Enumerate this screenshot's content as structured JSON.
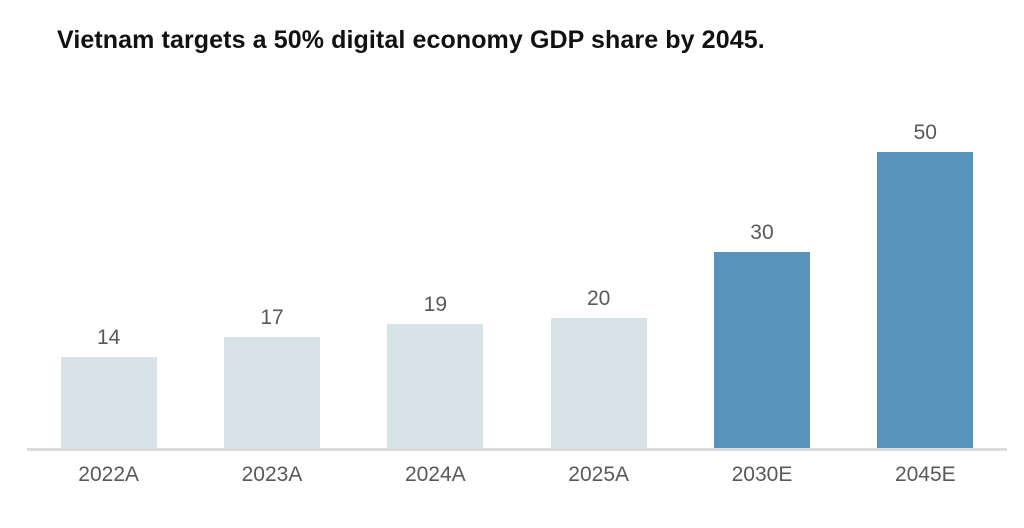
{
  "title": "Vietnam targets a 50% digital economy GDP share by 2045.",
  "colors": {
    "bar_actual": "#d7e2e9",
    "bar_estimate": "#5893bb",
    "label_text": "#595959",
    "axis_line": "#dcdcdc",
    "title_text": "#111111",
    "background": "#ffffff"
  },
  "chart_data": {
    "type": "bar",
    "title": "Vietnam targets a 50% digital economy GDP share by 2045.",
    "categories": [
      "2022A",
      "2023A",
      "2024A",
      "2025A",
      "2030E",
      "2045E"
    ],
    "values": [
      14,
      17,
      19,
      20,
      30,
      50
    ],
    "bar_styles": [
      "actual",
      "actual",
      "actual",
      "actual",
      "estimate",
      "estimate"
    ],
    "data_labels": [
      "14",
      "17",
      "19",
      "20",
      "30",
      "50"
    ],
    "xlabel": "",
    "ylabel": "",
    "ylim": [
      0,
      50
    ],
    "grid": false,
    "legend": false,
    "y_axis_visible": false,
    "units": "percent of GDP"
  }
}
